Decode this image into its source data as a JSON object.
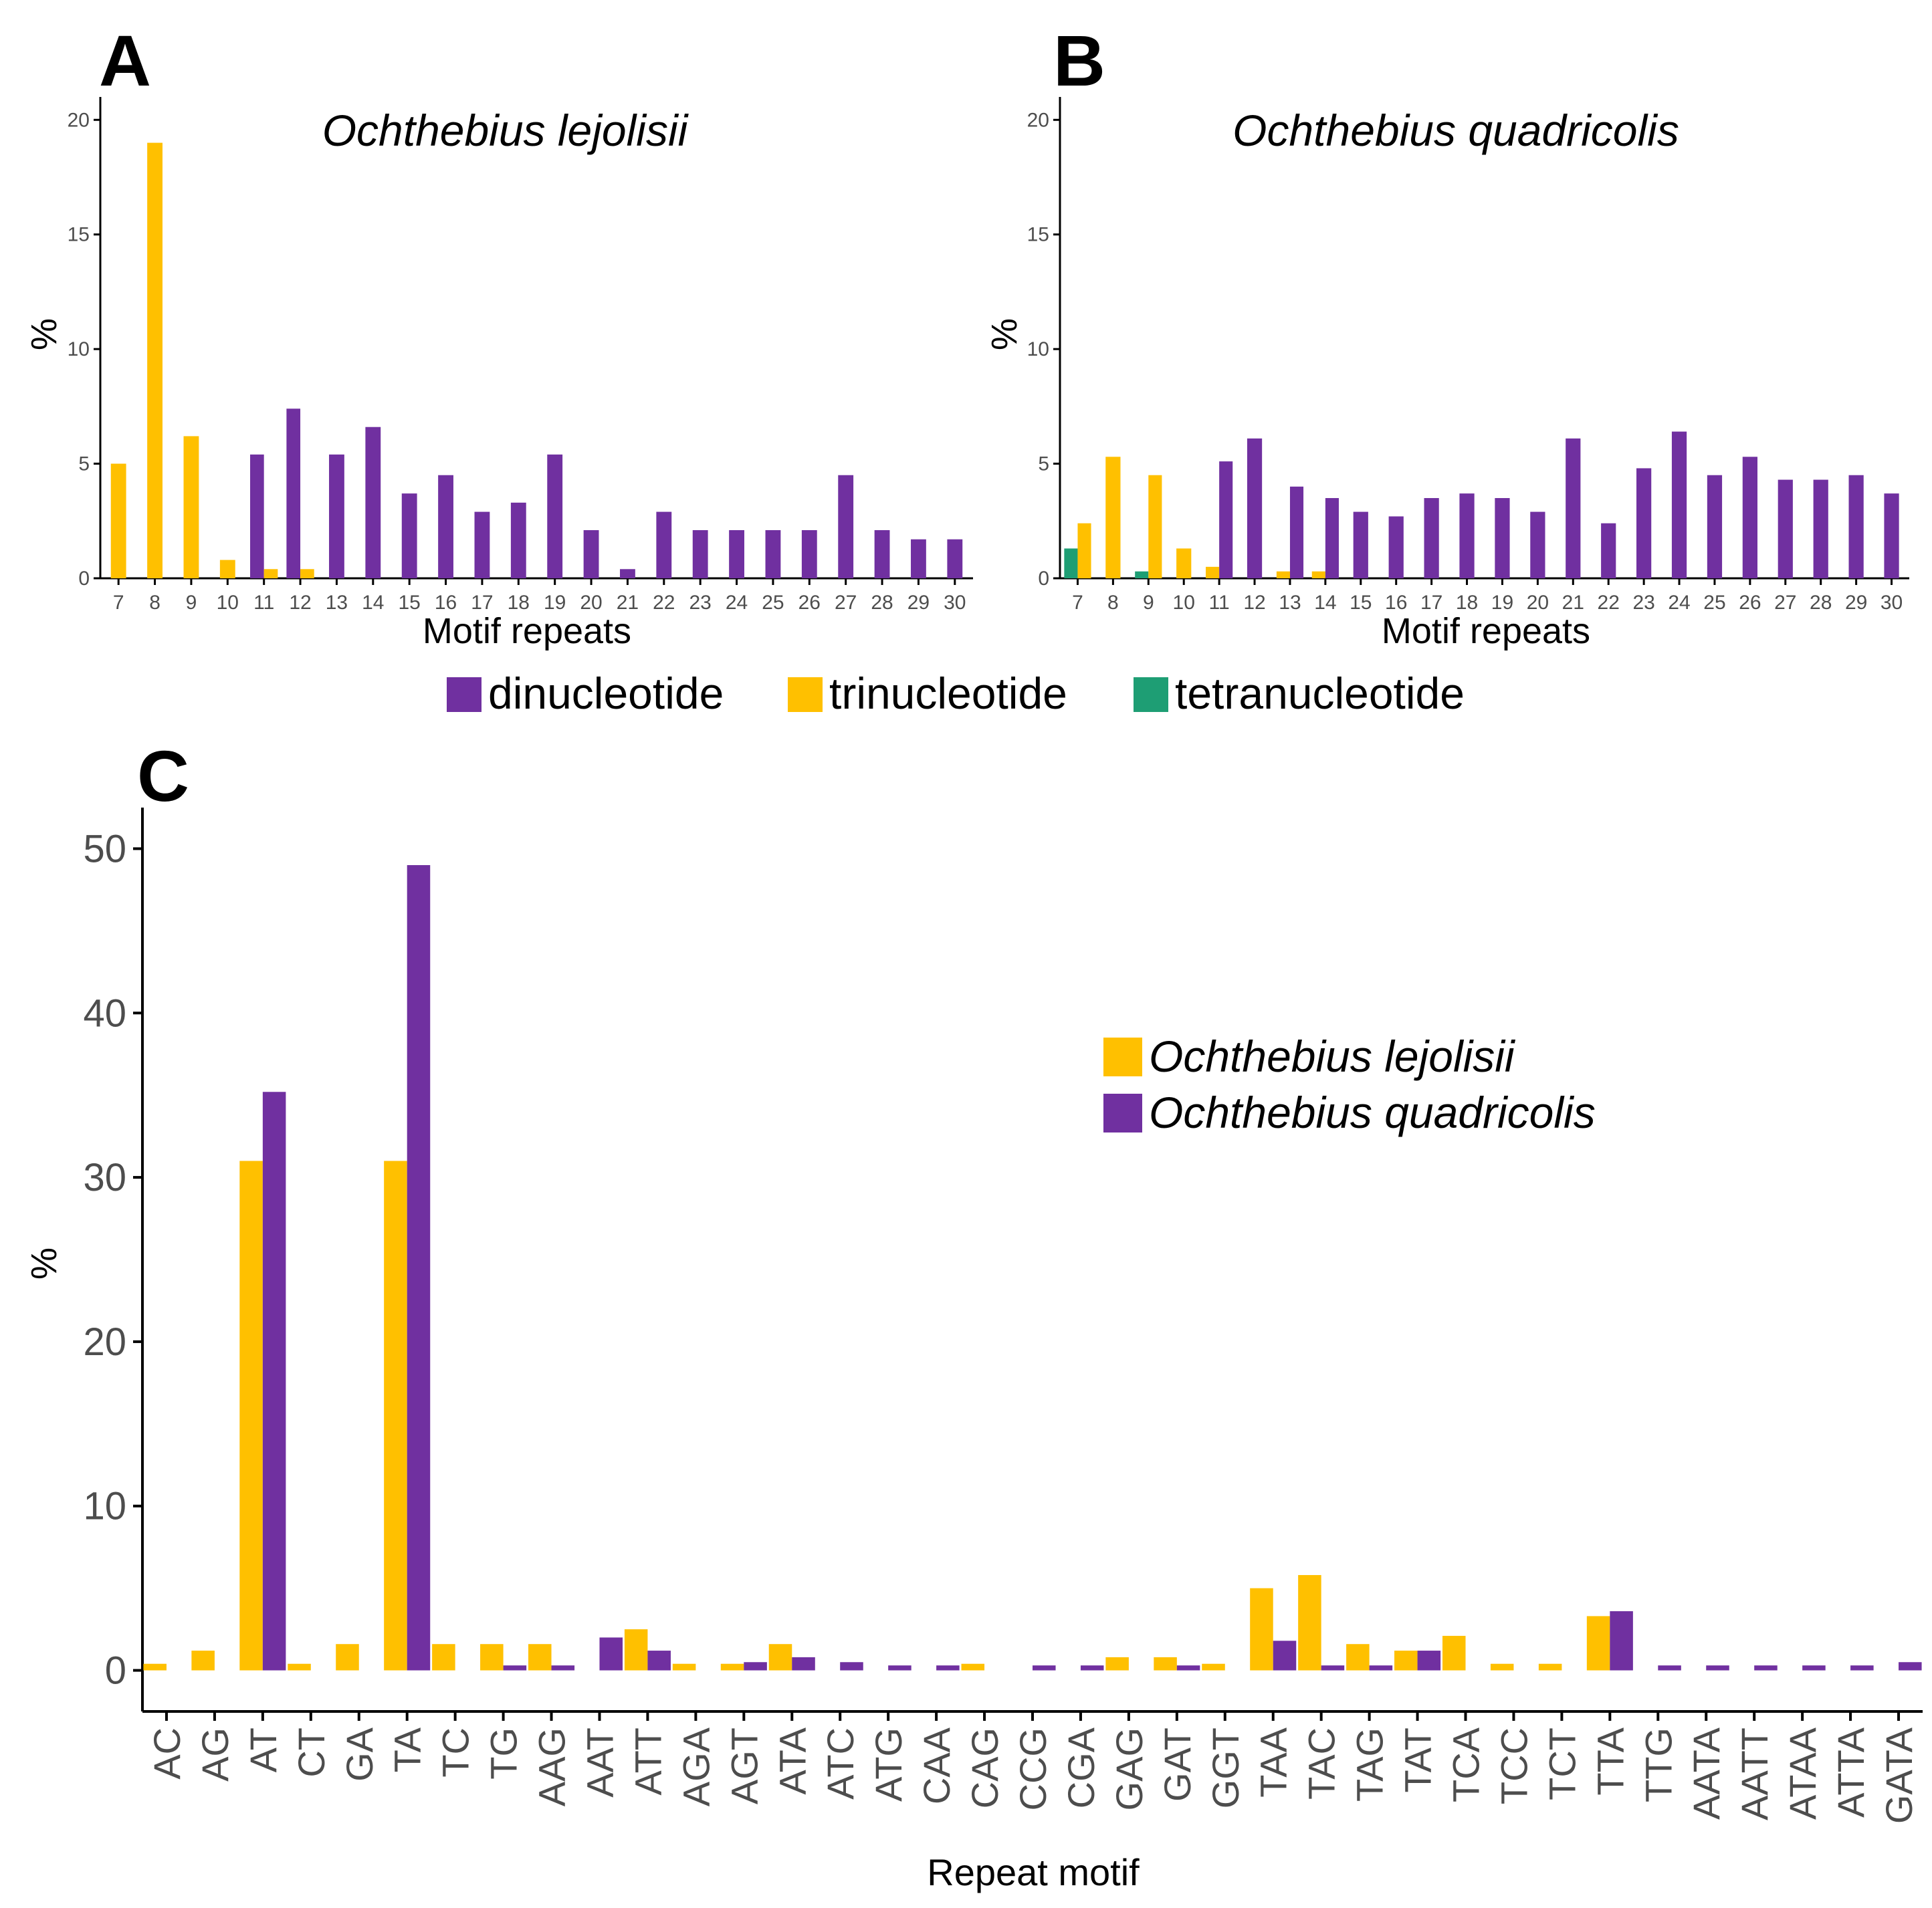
{
  "colors": {
    "dinucleotide": "#7030a0",
    "trinucleotide": "#ffc000",
    "tetranucleotide": "#1e9e74",
    "lejolisii": "#ffc000",
    "quadricolis": "#7030a0",
    "axis": "#000000",
    "tick_text": "#4d4d4d"
  },
  "legend_top": {
    "items": [
      {
        "label": "dinucleotide",
        "color_key": "dinucleotide"
      },
      {
        "label": "trinucleotide",
        "color_key": "trinucleotide"
      },
      {
        "label": "tetranucleotide",
        "color_key": "tetranucleotide"
      }
    ]
  },
  "legend_c": {
    "items": [
      {
        "label": "Ochthebius lejolisii",
        "color_key": "lejolisii"
      },
      {
        "label": "Ochthebius quadricolis",
        "color_key": "quadricolis"
      }
    ]
  },
  "chart_data": [
    {
      "panel": "A",
      "type": "bar",
      "title": "Ochthebius lejolisii",
      "xlabel": "Motif repeats",
      "ylabel": "%",
      "ylim": [
        0,
        21
      ],
      "yticks": [
        0,
        5,
        10,
        15,
        20
      ],
      "categories": [
        "7",
        "8",
        "9",
        "10",
        "11",
        "12",
        "13",
        "14",
        "15",
        "16",
        "17",
        "18",
        "19",
        "20",
        "21",
        "22",
        "23",
        "24",
        "25",
        "26",
        "27",
        "28",
        "29",
        "30"
      ],
      "series": [
        {
          "name": "dinucleotide",
          "color_key": "dinucleotide",
          "values": [
            0,
            0,
            0,
            0,
            5.4,
            7.4,
            5.4,
            6.6,
            3.7,
            4.5,
            2.9,
            3.3,
            5.4,
            2.1,
            0.4,
            2.9,
            2.1,
            2.1,
            2.1,
            2.1,
            4.5,
            2.1,
            1.7,
            1.7
          ]
        },
        {
          "name": "trinucleotide",
          "color_key": "trinucleotide",
          "values": [
            5.0,
            19.0,
            6.2,
            0.8,
            0.4,
            0.4,
            0,
            0,
            0,
            0,
            0,
            0,
            0,
            0,
            0,
            0,
            0,
            0,
            0,
            0,
            0,
            0,
            0,
            0
          ]
        }
      ]
    },
    {
      "panel": "B",
      "type": "bar",
      "title": "Ochthebius quadricolis",
      "xlabel": "Motif repeats",
      "ylabel": "%",
      "ylim": [
        0,
        21
      ],
      "yticks": [
        0,
        5,
        10,
        15,
        20
      ],
      "categories": [
        "7",
        "8",
        "9",
        "10",
        "11",
        "12",
        "13",
        "14",
        "15",
        "16",
        "17",
        "18",
        "19",
        "20",
        "21",
        "22",
        "23",
        "24",
        "25",
        "26",
        "27",
        "28",
        "29",
        "30"
      ],
      "series": [
        {
          "name": "tetranucleotide",
          "color_key": "tetranucleotide",
          "values": [
            1.3,
            0,
            0.3,
            0,
            0,
            0,
            0,
            0,
            0,
            0,
            0,
            0,
            0,
            0,
            0,
            0,
            0,
            0,
            0,
            0,
            0,
            0,
            0,
            0
          ]
        },
        {
          "name": "trinucleotide",
          "color_key": "trinucleotide",
          "values": [
            2.4,
            5.3,
            4.5,
            1.3,
            0.5,
            0,
            0.3,
            0.3,
            0,
            0,
            0,
            0,
            0,
            0,
            0,
            0,
            0,
            0,
            0,
            0,
            0,
            0,
            0,
            0
          ]
        },
        {
          "name": "dinucleotide",
          "color_key": "dinucleotide",
          "values": [
            0,
            0,
            0,
            0,
            5.1,
            6.1,
            4.0,
            3.5,
            2.9,
            2.7,
            3.5,
            3.7,
            3.5,
            2.9,
            6.1,
            2.4,
            4.8,
            6.4,
            4.5,
            5.3,
            4.3,
            4.3,
            4.5,
            3.7
          ]
        }
      ]
    },
    {
      "panel": "C",
      "type": "bar",
      "xlabel": "Repeat motif",
      "ylabel": "%",
      "ylim": [
        -2.5,
        52.5
      ],
      "yticks": [
        0,
        10,
        20,
        30,
        40,
        50
      ],
      "categories": [
        "AC",
        "AG",
        "AT",
        "CT",
        "GA",
        "TA",
        "TC",
        "TG",
        "AAG",
        "AAT",
        "ATT",
        "AGA",
        "AGT",
        "ATA",
        "ATC",
        "ATG",
        "CAA",
        "CAG",
        "CCG",
        "CGA",
        "GAG",
        "GAT",
        "GGT",
        "TAA",
        "TAC",
        "TAG",
        "TAT",
        "TCA",
        "TCC",
        "TCT",
        "TTA",
        "TTG",
        "AATA",
        "AATT",
        "ATAA",
        "ATTA",
        "GATA"
      ],
      "series": [
        {
          "name": "Ochthebius lejolisii",
          "color_key": "lejolisii",
          "values": [
            0.4,
            1.2,
            31.0,
            0.4,
            1.6,
            31.0,
            1.6,
            1.6,
            1.6,
            0,
            2.5,
            0.4,
            0.4,
            1.6,
            0,
            0,
            0,
            0.4,
            0,
            0,
            0.8,
            0.8,
            0.4,
            5.0,
            5.8,
            1.6,
            1.2,
            2.1,
            0.4,
            0.4,
            3.3,
            0,
            0,
            0,
            0,
            0,
            0
          ]
        },
        {
          "name": "Ochthebius quadricolis",
          "color_key": "quadricolis",
          "values": [
            0,
            0,
            35.2,
            0,
            0,
            49.0,
            0,
            0.3,
            0.3,
            2.0,
            1.2,
            0,
            0.5,
            0.8,
            0.5,
            0.3,
            0.3,
            0,
            0.3,
            0.3,
            0,
            0.3,
            0,
            1.8,
            0.3,
            0.3,
            1.2,
            0,
            0,
            0,
            3.6,
            0.3,
            0.3,
            0.3,
            0.3,
            0.3,
            0.5
          ]
        }
      ]
    }
  ],
  "panel_labels": {
    "a": "A",
    "b": "B",
    "c": "C"
  }
}
